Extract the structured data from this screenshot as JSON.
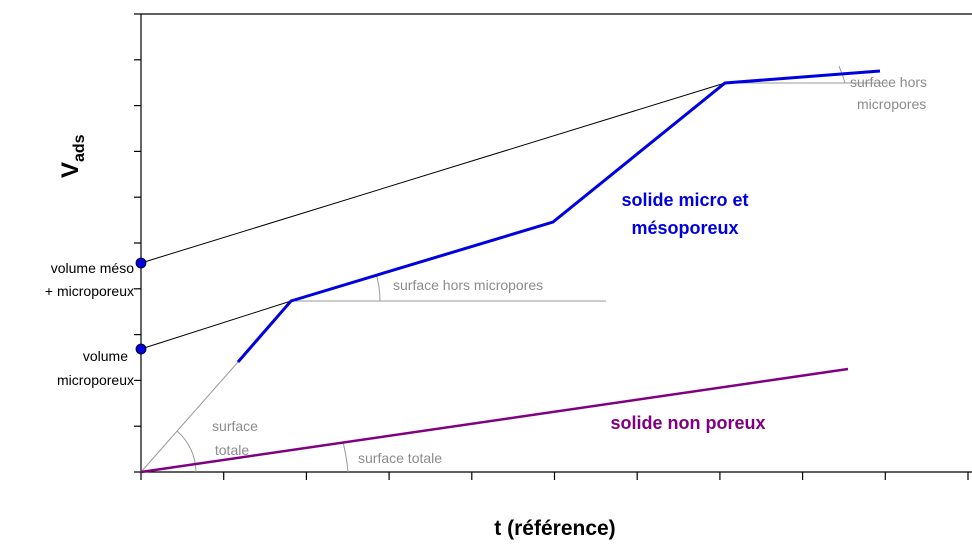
{
  "axes": {
    "y_label": "V",
    "y_label_sub": "ads",
    "x_label": "t (référence)"
  },
  "points": [
    {
      "label_lines": [
        "volume méso",
        "+ microporeux"
      ]
    },
    {
      "label_lines": [
        "volume",
        "microporeux"
      ]
    }
  ],
  "curves": {
    "mesoporous": {
      "label_lines": [
        "solide micro et",
        "mésoporeux"
      ]
    },
    "nonporous": {
      "label": "solide non poreux"
    }
  },
  "angles": {
    "external_top": [
      "surface hors",
      "micropores"
    ],
    "external_mid": "surface hors micropores",
    "total_left": [
      "surface",
      "totale"
    ],
    "total_bottom": "surface totale"
  }
}
